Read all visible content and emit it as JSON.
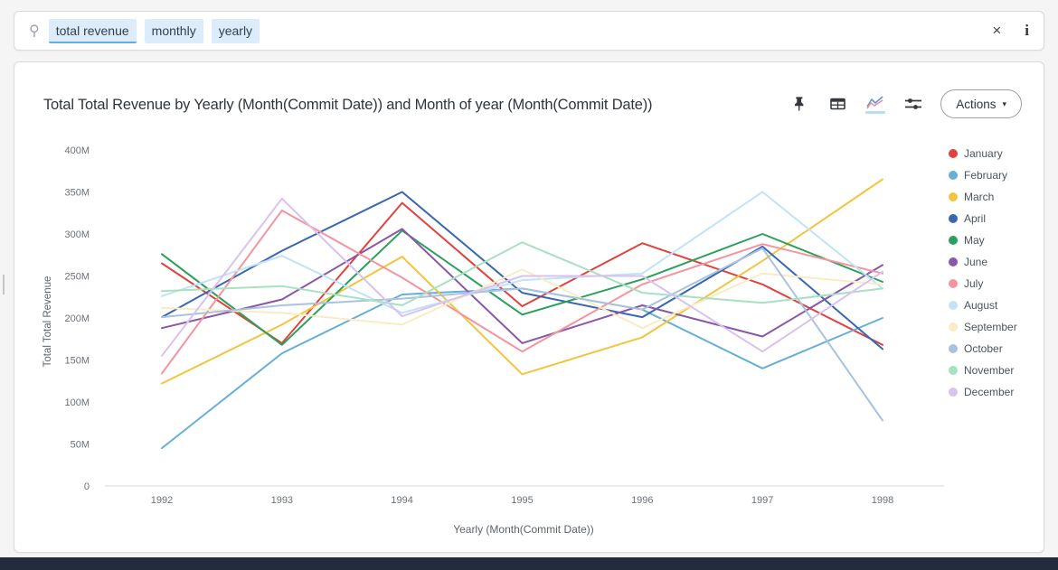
{
  "search": {
    "tokens": [
      {
        "label": "total revenue",
        "active": true
      },
      {
        "label": "monthly",
        "active": false
      },
      {
        "label": "yearly",
        "active": false
      }
    ],
    "clear_glyph": "×",
    "info_glyph": "i"
  },
  "toolbar": {
    "actions_label": "Actions",
    "actions_caret": "▾"
  },
  "chart_data": {
    "type": "line",
    "title": "Total Total Revenue by Yearly (Month(Commit Date)) and Month of year (Month(Commit Date))",
    "xlabel": "Yearly (Month(Commit Date))",
    "ylabel": "Total Total Revenue",
    "x": [
      1992,
      1993,
      1994,
      1995,
      1996,
      1997,
      1998
    ],
    "y_axis": {
      "min": 0,
      "max": 400000000,
      "tick_step": 50000000,
      "tick_labels": [
        "0",
        "50M",
        "100M",
        "150M",
        "200M",
        "250M",
        "300M",
        "350M",
        "400M"
      ]
    },
    "grid": false,
    "legend_position": "right",
    "values_unit": "millions",
    "series": [
      {
        "name": "January",
        "color": "#e0433d",
        "values": [
          265,
          170,
          337,
          214,
          289,
          240,
          168
        ]
      },
      {
        "name": "February",
        "color": "#67afd7",
        "values": [
          45,
          158,
          228,
          235,
          210,
          140,
          200
        ]
      },
      {
        "name": "March",
        "color": "#f3c43e",
        "values": [
          122,
          192,
          273,
          133,
          177,
          268,
          365
        ]
      },
      {
        "name": "April",
        "color": "#3767b0",
        "values": [
          201,
          280,
          350,
          230,
          201,
          285,
          163
        ]
      },
      {
        "name": "May",
        "color": "#2aa05a",
        "values": [
          276,
          168,
          304,
          204,
          246,
          300,
          243
        ]
      },
      {
        "name": "June",
        "color": "#8a57a8",
        "values": [
          188,
          222,
          306,
          170,
          215,
          178,
          263
        ]
      },
      {
        "name": "July",
        "color": "#f4949e",
        "values": [
          134,
          328,
          248,
          160,
          240,
          288,
          253
        ]
      },
      {
        "name": "August",
        "color": "#c1e3f5",
        "values": [
          226,
          274,
          206,
          245,
          253,
          350,
          235
        ]
      },
      {
        "name": "September",
        "color": "#f9ecc2",
        "values": [
          212,
          206,
          192,
          258,
          188,
          253,
          240
        ]
      },
      {
        "name": "October",
        "color": "#a9c2e0",
        "values": [
          201,
          215,
          223,
          235,
          210,
          283,
          78
        ]
      },
      {
        "name": "November",
        "color": "#a8e0c2",
        "values": [
          232,
          238,
          215,
          290,
          230,
          218,
          235
        ]
      },
      {
        "name": "December",
        "color": "#d9c2ee",
        "values": [
          155,
          342,
          202,
          250,
          250,
          160,
          255
        ]
      }
    ]
  }
}
